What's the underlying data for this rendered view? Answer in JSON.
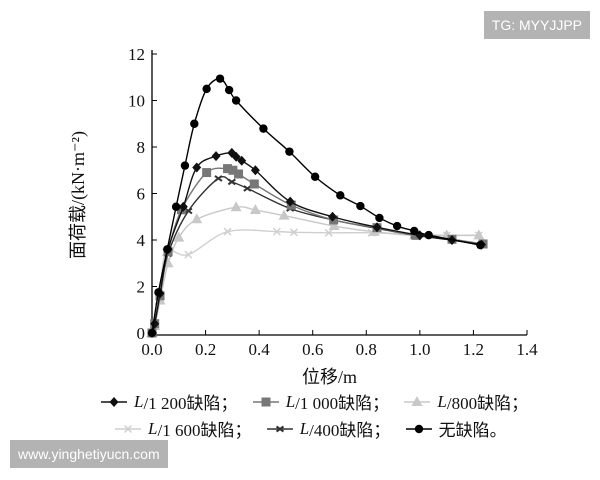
{
  "watermarks": {
    "top": "TG: MYYJJPP",
    "bottom": "www.yinghetiyucn.com"
  },
  "chart_data": {
    "type": "line",
    "title": "",
    "xlabel": "位移/m",
    "ylabel": "面荷载/(kN·m⁻²)",
    "xlim": [
      0,
      1.4
    ],
    "ylim": [
      0,
      12
    ],
    "xticks": [
      "0.0",
      "0.2",
      "0.4",
      "0.6",
      "0.8",
      "1.0",
      "1.2",
      "1.4"
    ],
    "yticks": [
      "0",
      "2",
      "4",
      "6",
      "8",
      "10",
      "12"
    ],
    "grid": false,
    "legend_position": "bottom",
    "series": [
      {
        "name": "L/1 200缺陷；",
        "name_italic": "L",
        "name_rest": "/1 200缺陷；",
        "color": "#111111",
        "marker": "diamond",
        "x": [
          0,
          0.01,
          0.03,
          0.06,
          0.117,
          0.167,
          0.239,
          0.298,
          0.314,
          0.335,
          0.386,
          0.516,
          0.674,
          0.84,
          1.0,
          1.12,
          1.23
        ],
        "y": [
          0,
          0.4,
          1.7,
          3.6,
          5.43,
          7.12,
          7.61,
          7.75,
          7.58,
          7.41,
          7.0,
          5.65,
          5.0,
          4.55,
          4.2,
          4.0,
          3.8
        ]
      },
      {
        "name": "L/1 000缺陷；",
        "name_italic": "L",
        "name_rest": "/1 000缺陷；",
        "color": "#777777",
        "marker": "square",
        "x": [
          0,
          0.01,
          0.03,
          0.06,
          0.11,
          0.204,
          0.282,
          0.302,
          0.323,
          0.382,
          0.52,
          0.678,
          0.84,
          0.985,
          1.12,
          1.236
        ],
        "y": [
          0,
          0.4,
          1.6,
          3.5,
          5.3,
          6.9,
          7.07,
          7.0,
          6.84,
          6.41,
          5.5,
          4.86,
          4.53,
          4.2,
          4.03,
          3.83
        ]
      },
      {
        "name": "L/800缺陷；",
        "name_italic": "L",
        "name_rest": "/800缺陷；",
        "color": "#c8c8c8",
        "marker": "triangle",
        "x": [
          0,
          0.01,
          0.03,
          0.06,
          0.1,
          0.167,
          0.314,
          0.386,
          0.493,
          0.68,
          0.83,
          0.98,
          1.1,
          1.22
        ],
        "y": [
          0,
          0.3,
          1.4,
          3.0,
          4.1,
          4.89,
          5.41,
          5.29,
          5.05,
          4.6,
          4.35,
          4.2,
          4.2,
          4.2
        ]
      },
      {
        "name": "L/1 600缺陷；",
        "name_italic": "L",
        "name_rest": "/1 600缺陷；",
        "color": "#cfcfcf",
        "marker": "x",
        "x": [
          0,
          0.01,
          0.03,
          0.052,
          0.136,
          0.282,
          0.466,
          0.53,
          0.66,
          0.82,
          0.98,
          1.1,
          1.22
        ],
        "y": [
          0,
          0.3,
          1.5,
          3.47,
          3.37,
          4.36,
          4.36,
          4.33,
          4.31,
          4.31,
          4.25,
          4.2,
          4.2
        ]
      },
      {
        "name": "L/400缺陷；",
        "name_italic": "L",
        "name_rest": "/400缺陷；",
        "color": "#333333",
        "marker": "dash",
        "x": [
          0,
          0.01,
          0.03,
          0.06,
          0.136,
          0.248,
          0.298,
          0.356,
          0.516,
          0.68,
          0.84,
          0.98,
          1.12,
          1.23
        ],
        "y": [
          0,
          0.4,
          1.6,
          3.4,
          5.25,
          6.65,
          6.5,
          6.22,
          5.35,
          4.85,
          4.5,
          4.2,
          4.0,
          3.8
        ]
      },
      {
        "name": "无缺陷。",
        "name_italic": "",
        "name_rest": "无缺陷。",
        "color": "#000000",
        "marker": "circle",
        "x": [
          0,
          0.024,
          0.057,
          0.09,
          0.123,
          0.158,
          0.204,
          0.254,
          0.288,
          0.314,
          0.416,
          0.513,
          0.609,
          0.703,
          0.778,
          0.849,
          0.915,
          0.979,
          1.033,
          1.226
        ],
        "y": [
          0,
          1.75,
          3.6,
          5.43,
          7.2,
          9.0,
          10.5,
          10.94,
          10.45,
          10.0,
          8.79,
          7.8,
          6.72,
          5.92,
          5.46,
          4.95,
          4.6,
          4.39,
          4.21,
          3.78
        ]
      }
    ]
  }
}
